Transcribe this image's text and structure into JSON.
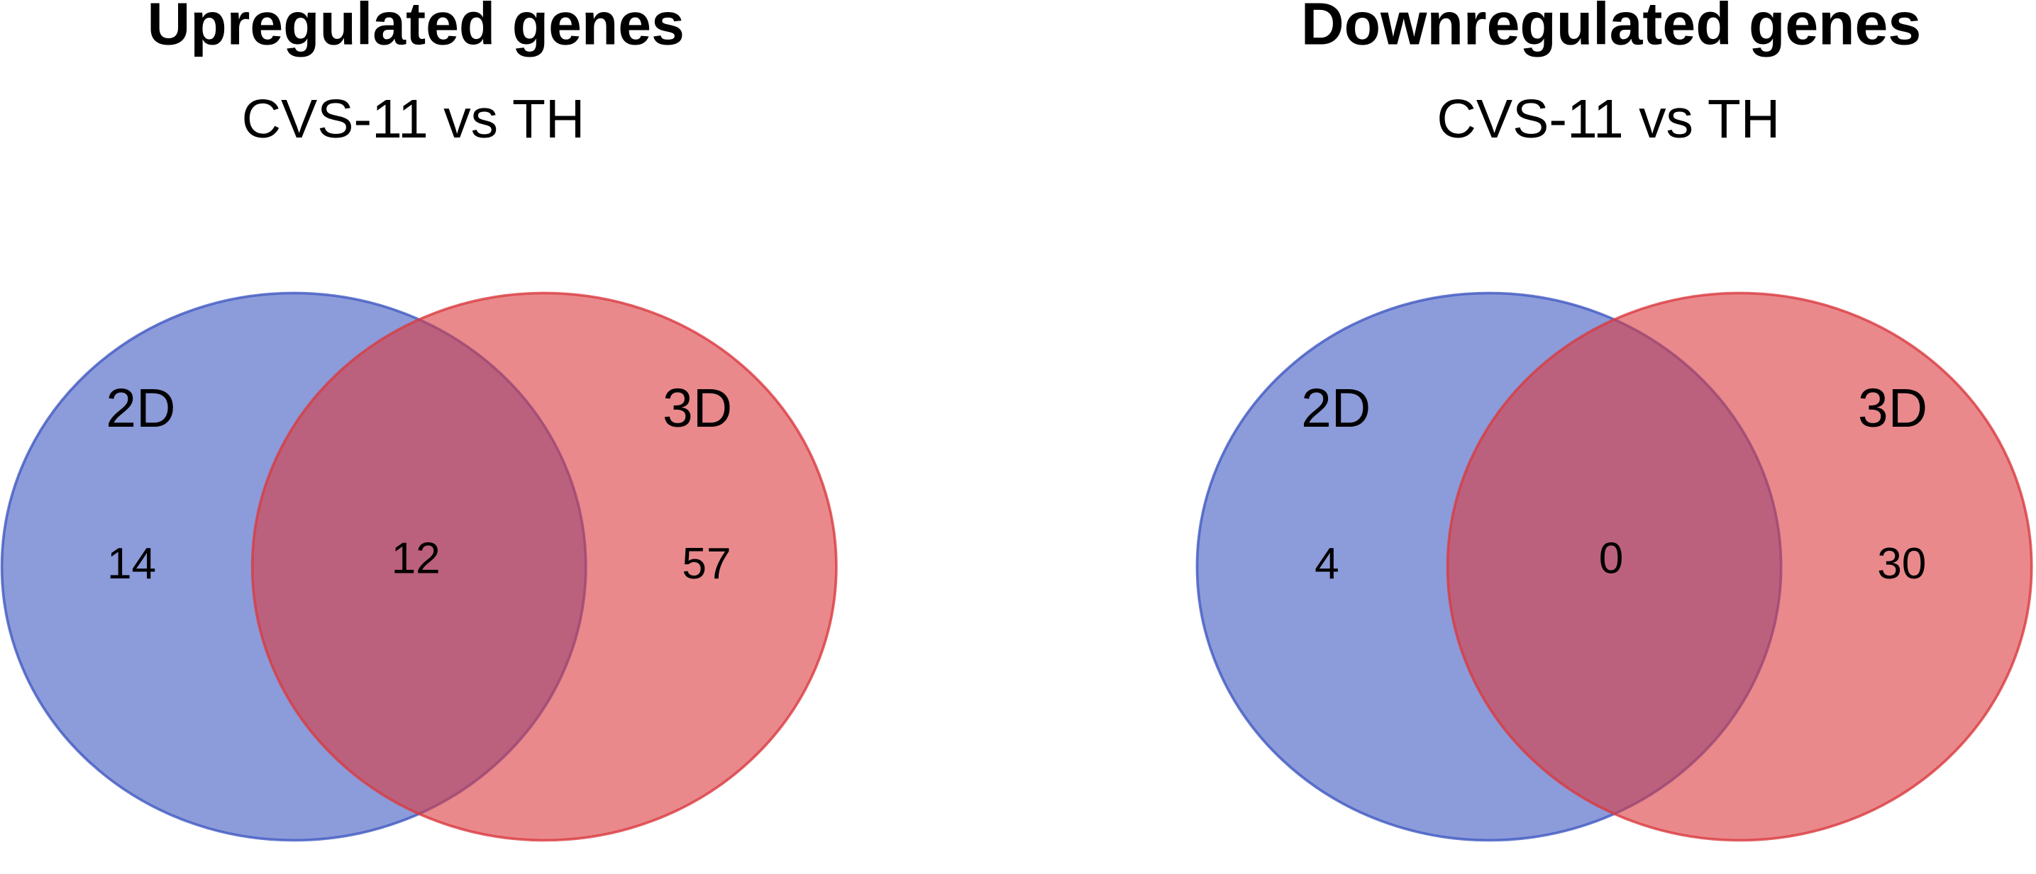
{
  "chart_data": [
    {
      "type": "venn",
      "title": "Upregulated genes",
      "subtitle": "CVS-11 vs TH",
      "series": [
        {
          "name": "2D",
          "color": "#4059c2"
        },
        {
          "name": "3D",
          "color": "#da3b40"
        }
      ],
      "values": [
        14,
        12,
        57
      ]
    },
    {
      "type": "venn",
      "title": "Downregulated genes",
      "subtitle": "CVS-11 vs TH",
      "series": [
        {
          "name": "2D",
          "color": "#4059c2"
        },
        {
          "name": "3D",
          "color": "#da3b40"
        }
      ],
      "values": [
        4,
        0,
        30
      ]
    }
  ]
}
